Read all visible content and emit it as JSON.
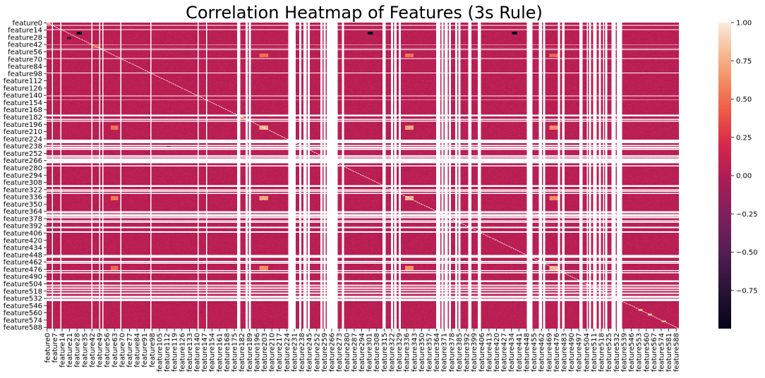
{
  "chart_data": {
    "type": "heatmap",
    "title": "Correlation Heatmap of Features (3s Rule)",
    "xlabel": "",
    "ylabel": "",
    "n_features": 591,
    "feature_prefix": "feature",
    "value_range": [
      -1.0,
      1.0
    ],
    "colormap": "rocket",
    "colorbar_ticks": [
      {
        "value": 1.0,
        "label": "1.00"
      },
      {
        "value": 0.75,
        "label": "0.75"
      },
      {
        "value": 0.5,
        "label": "0.50"
      },
      {
        "value": 0.25,
        "label": "0.25"
      },
      {
        "value": 0.0,
        "label": "0.00"
      },
      {
        "value": -0.25,
        "label": "−0.25"
      },
      {
        "value": -0.5,
        "label": "−0.50"
      },
      {
        "value": -0.75,
        "label": "−0.75"
      }
    ],
    "y_tick_labels": [
      "feature0",
      "feature14",
      "feature28",
      "feature42",
      "feature56",
      "feature70",
      "feature84",
      "feature98",
      "feature112",
      "feature126",
      "feature140",
      "feature154",
      "feature168",
      "feature182",
      "feature196",
      "feature210",
      "feature224",
      "feature238",
      "feature252",
      "feature266",
      "feature280",
      "feature294",
      "feature308",
      "feature322",
      "feature336",
      "feature350",
      "feature364",
      "feature378",
      "feature392",
      "feature406",
      "feature420",
      "feature434",
      "feature448",
      "feature462",
      "feature476",
      "feature490",
      "feature504",
      "feature518",
      "feature532",
      "feature546",
      "feature560",
      "feature574",
      "feature588"
    ],
    "y_tick_indices": [
      0,
      14,
      28,
      42,
      56,
      70,
      84,
      98,
      112,
      126,
      140,
      154,
      168,
      182,
      196,
      210,
      224,
      238,
      252,
      266,
      280,
      294,
      308,
      322,
      336,
      350,
      364,
      378,
      392,
      406,
      420,
      434,
      448,
      462,
      476,
      490,
      504,
      518,
      532,
      546,
      560,
      574,
      588
    ],
    "x_tick_labels": [
      "feature0",
      "feature7",
      "feature14",
      "feature21",
      "feature28",
      "feature35",
      "feature42",
      "feature49",
      "feature56",
      "feature63",
      "feature70",
      "feature77",
      "feature84",
      "feature91",
      "feature98",
      "feature105",
      "feature112",
      "feature119",
      "feature126",
      "feature133",
      "feature140",
      "feature147",
      "feature154",
      "feature161",
      "feature168",
      "feature175",
      "feature182",
      "feature189",
      "feature196",
      "feature203",
      "feature210",
      "feature217",
      "feature224",
      "feature231",
      "feature238",
      "feature245",
      "feature252",
      "feature259",
      "feature266",
      "feature273",
      "feature280",
      "feature287",
      "feature294",
      "feature301",
      "feature308",
      "feature315",
      "feature322",
      "feature329",
      "feature336",
      "feature343",
      "feature350",
      "feature357",
      "feature364",
      "feature371",
      "feature378",
      "feature385",
      "feature392",
      "feature399",
      "feature406",
      "feature413",
      "feature420",
      "feature427",
      "feature434",
      "feature441",
      "feature448",
      "feature455",
      "feature462",
      "feature469",
      "feature476",
      "feature483",
      "feature490",
      "feature497",
      "feature504",
      "feature511",
      "feature518",
      "feature525",
      "feature532",
      "feature539",
      "feature546",
      "feature553",
      "feature560",
      "feature567",
      "feature574",
      "feature581",
      "feature588"
    ],
    "x_tick_indices": [
      0,
      7,
      14,
      21,
      28,
      35,
      42,
      49,
      56,
      63,
      70,
      77,
      84,
      91,
      98,
      105,
      112,
      119,
      126,
      133,
      140,
      147,
      154,
      161,
      168,
      175,
      182,
      189,
      196,
      203,
      210,
      217,
      224,
      231,
      238,
      245,
      252,
      259,
      266,
      273,
      280,
      287,
      294,
      301,
      308,
      315,
      322,
      329,
      336,
      343,
      350,
      357,
      364,
      371,
      378,
      385,
      392,
      399,
      406,
      413,
      420,
      427,
      434,
      441,
      448,
      455,
      462,
      469,
      476,
      483,
      490,
      497,
      504,
      511,
      518,
      525,
      532,
      539,
      546,
      553,
      560,
      567,
      574,
      581,
      588
    ],
    "constant_feature_gaps": [
      {
        "start": 5,
        "end": 5
      },
      {
        "start": 13,
        "end": 13
      },
      {
        "start": 42,
        "end": 42
      },
      {
        "start": 49,
        "end": 49
      },
      {
        "start": 52,
        "end": 52
      },
      {
        "start": 69,
        "end": 69
      },
      {
        "start": 97,
        "end": 97
      },
      {
        "start": 141,
        "end": 141
      },
      {
        "start": 149,
        "end": 149
      },
      {
        "start": 178,
        "end": 180
      },
      {
        "start": 186,
        "end": 187
      },
      {
        "start": 189,
        "end": 190
      },
      {
        "start": 226,
        "end": 232
      },
      {
        "start": 236,
        "end": 237
      },
      {
        "start": 240,
        "end": 242
      },
      {
        "start": 244,
        "end": 245
      },
      {
        "start": 256,
        "end": 257
      },
      {
        "start": 259,
        "end": 260
      },
      {
        "start": 262,
        "end": 271
      },
      {
        "start": 276,
        "end": 277
      },
      {
        "start": 314,
        "end": 316
      },
      {
        "start": 322,
        "end": 323
      },
      {
        "start": 325,
        "end": 326
      },
      {
        "start": 329,
        "end": 330
      },
      {
        "start": 364,
        "end": 367
      },
      {
        "start": 369,
        "end": 370
      },
      {
        "start": 372,
        "end": 374
      },
      {
        "start": 376,
        "end": 377
      },
      {
        "start": 382,
        "end": 383
      },
      {
        "start": 385,
        "end": 386
      },
      {
        "start": 394,
        "end": 396
      },
      {
        "start": 403,
        "end": 405
      },
      {
        "start": 449,
        "end": 453
      },
      {
        "start": 460,
        "end": 462
      },
      {
        "start": 464,
        "end": 465
      },
      {
        "start": 478,
        "end": 479
      },
      {
        "start": 482,
        "end": 483
      },
      {
        "start": 498,
        "end": 500
      },
      {
        "start": 505,
        "end": 505
      },
      {
        "start": 507,
        "end": 508
      },
      {
        "start": 511,
        "end": 513
      },
      {
        "start": 516,
        "end": 517
      },
      {
        "start": 520,
        "end": 520
      },
      {
        "start": 522,
        "end": 523
      },
      {
        "start": 528,
        "end": 531
      },
      {
        "start": 533,
        "end": 537
      }
    ],
    "baseline_value": 0.05,
    "diagonal_value": 1.0,
    "highlight_blocks": [
      {
        "rows": [
          199,
          206
        ],
        "cols": [
          199,
          206
        ],
        "value": 0.85
      },
      {
        "rows": [
          199,
          206
        ],
        "cols": [
          335,
          342
        ],
        "value": 0.8
      },
      {
        "rows": [
          335,
          342
        ],
        "cols": [
          199,
          206
        ],
        "value": 0.8
      },
      {
        "rows": [
          335,
          342
        ],
        "cols": [
          335,
          342
        ],
        "value": 0.85
      },
      {
        "rows": [
          199,
          206
        ],
        "cols": [
          60,
          66
        ],
        "value": 0.6
      },
      {
        "rows": [
          60,
          66
        ],
        "cols": [
          199,
          206
        ],
        "value": 0.6
      },
      {
        "rows": [
          335,
          342
        ],
        "cols": [
          60,
          66
        ],
        "value": 0.6
      },
      {
        "rows": [
          60,
          66
        ],
        "cols": [
          335,
          342
        ],
        "value": 0.6
      },
      {
        "rows": [
          199,
          206
        ],
        "cols": [
          470,
          477
        ],
        "value": 0.7
      },
      {
        "rows": [
          470,
          477
        ],
        "cols": [
          199,
          206
        ],
        "value": 0.7
      },
      {
        "rows": [
          335,
          342
        ],
        "cols": [
          470,
          477
        ],
        "value": 0.7
      },
      {
        "rows": [
          470,
          477
        ],
        "cols": [
          335,
          342
        ],
        "value": 0.7
      },
      {
        "rows": [
          470,
          477
        ],
        "cols": [
          470,
          477
        ],
        "value": 0.85
      },
      {
        "rows": [
          60,
          66
        ],
        "cols": [
          470,
          477
        ],
        "value": 0.55
      },
      {
        "rows": [
          470,
          477
        ],
        "cols": [
          60,
          66
        ],
        "value": 0.55
      },
      {
        "rows": [
          553,
          556
        ],
        "cols": [
          553,
          556
        ],
        "value": 0.8
      },
      {
        "rows": [
          562,
          565
        ],
        "cols": [
          562,
          565
        ],
        "value": 0.85
      },
      {
        "rows": [
          575,
          578
        ],
        "cols": [
          575,
          578
        ],
        "value": 0.8
      },
      {
        "rows": [
          180,
          184
        ],
        "cols": [
          180,
          184
        ],
        "value": 0.7
      },
      {
        "rows": [
          0,
          3
        ],
        "cols": [
          0,
          3
        ],
        "value": 0.7
      },
      {
        "rows": [
          42,
          48
        ],
        "cols": [
          42,
          48
        ],
        "value": 0.5
      },
      {
        "rows": [
          18,
          22
        ],
        "cols": [
          28,
          32
        ],
        "value": -0.9
      },
      {
        "rows": [
          18,
          22
        ],
        "cols": [
          300,
          304
        ],
        "value": -0.85
      },
      {
        "rows": [
          18,
          22
        ],
        "cols": [
          435,
          439
        ],
        "value": -0.85
      },
      {
        "rows": [
          28,
          31
        ],
        "cols": [
          19,
          22
        ],
        "value": -0.6
      },
      {
        "rows": [
          236,
          240
        ],
        "cols": [
          112,
          115
        ],
        "value": -0.9
      }
    ]
  }
}
